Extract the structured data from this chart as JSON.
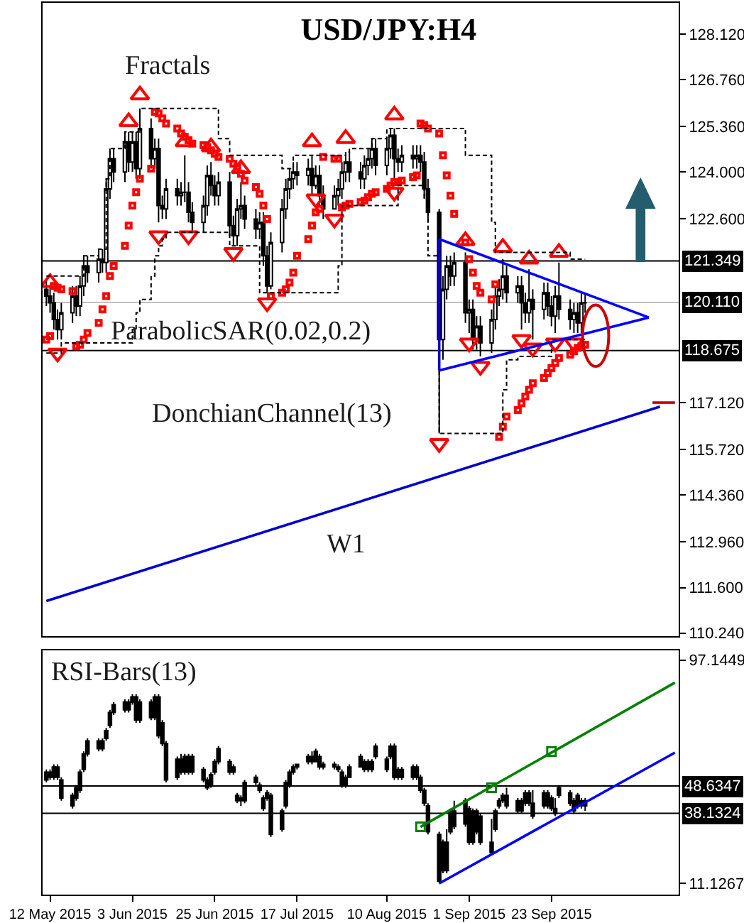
{
  "chart_data": [
    {
      "type": "candlestick",
      "title": "USD/JPY:H4",
      "color": "#000000",
      "tick_labels": "y",
      "xlim": [
        "2015-05-10",
        "2015-10-27"
      ],
      "ylim": [
        110.15,
        129.05
      ],
      "yticks": [
        {
          "value": 128.12,
          "label": "128.120"
        },
        {
          "value": 126.76,
          "label": "126.760"
        },
        {
          "value": 125.36,
          "label": "125.360"
        },
        {
          "value": 124.0,
          "label": "124.000"
        },
        {
          "value": 122.6,
          "label": "122.600"
        },
        {
          "value": 117.12,
          "label": "117.120"
        },
        {
          "value": 115.72,
          "label": "115.720"
        },
        {
          "value": 114.36,
          "label": "114.360"
        },
        {
          "value": 112.96,
          "label": "112.960"
        },
        {
          "value": 111.6,
          "label": "111.600"
        },
        {
          "value": 110.24,
          "label": "110.240"
        }
      ],
      "annotations": [
        "Fractals",
        "ParabolicSAR(0.02,0.2)",
        "DonchianChannel(13)",
        "W1"
      ],
      "ref_lines": [
        {
          "axis": "y",
          "value": 121.349,
          "label": "121.349",
          "color": "#000000"
        },
        {
          "axis": "y",
          "value": 120.11,
          "label": "120.110",
          "color": "#c0c0c0"
        },
        {
          "axis": "y",
          "value": 118.675,
          "label": "118.675",
          "color": "#000000"
        }
      ],
      "x": [
        "2015-05-11",
        "2015-05-12",
        "2015-05-13",
        "2015-05-14",
        "2015-05-15",
        "2015-05-18",
        "2015-05-19",
        "2015-05-20",
        "2015-05-21",
        "2015-05-22",
        "2015-05-25",
        "2015-05-26",
        "2015-05-27",
        "2015-05-28",
        "2015-05-29",
        "2015-06-01",
        "2015-06-02",
        "2015-06-03",
        "2015-06-04",
        "2015-06-05",
        "2015-06-08",
        "2015-06-09",
        "2015-06-10",
        "2015-06-11",
        "2015-06-12",
        "2015-06-15",
        "2015-06-16",
        "2015-06-17",
        "2015-06-18",
        "2015-06-19",
        "2015-06-22",
        "2015-06-23",
        "2015-06-24",
        "2015-06-25",
        "2015-06-26",
        "2015-06-29",
        "2015-06-30",
        "2015-07-01",
        "2015-07-02",
        "2015-07-03",
        "2015-07-06",
        "2015-07-07",
        "2015-07-08",
        "2015-07-09",
        "2015-07-10",
        "2015-07-13",
        "2015-07-14",
        "2015-07-15",
        "2015-07-16",
        "2015-07-17",
        "2015-07-20",
        "2015-07-21",
        "2015-07-22",
        "2015-07-23",
        "2015-07-24",
        "2015-07-27",
        "2015-07-28",
        "2015-07-29",
        "2015-07-30",
        "2015-07-31",
        "2015-08-03",
        "2015-08-04",
        "2015-08-05",
        "2015-08-06",
        "2015-08-07",
        "2015-08-10",
        "2015-08-11",
        "2015-08-12",
        "2015-08-13",
        "2015-08-14",
        "2015-08-17",
        "2015-08-18",
        "2015-08-19",
        "2015-08-20",
        "2015-08-21",
        "2015-08-24",
        "2015-08-25",
        "2015-08-26",
        "2015-08-27",
        "2015-08-28",
        "2015-08-31",
        "2015-09-01",
        "2015-09-02",
        "2015-09-03",
        "2015-09-04",
        "2015-09-07",
        "2015-09-08",
        "2015-09-09",
        "2015-09-10",
        "2015-09-11",
        "2015-09-14",
        "2015-09-15",
        "2015-09-16",
        "2015-09-17",
        "2015-09-18",
        "2015-09-21",
        "2015-09-22",
        "2015-09-23",
        "2015-09-24",
        "2015-09-25",
        "2015-09-28",
        "2015-09-29",
        "2015-09-30",
        "2015-10-01",
        "2015-10-02"
      ],
      "ohlc": [
        [
          120.5,
          120.8,
          120.0,
          120.3
        ],
        [
          120.3,
          120.6,
          119.8,
          120.1
        ],
        [
          120.1,
          120.4,
          119.3,
          119.6
        ],
        [
          119.6,
          119.9,
          119.0,
          119.3
        ],
        [
          119.3,
          120.1,
          119.0,
          119.8
        ],
        [
          119.8,
          120.6,
          119.5,
          120.3
        ],
        [
          120.3,
          120.6,
          119.7,
          120.0
        ],
        [
          120.0,
          120.9,
          119.7,
          120.6
        ],
        [
          120.6,
          121.5,
          120.3,
          121.2
        ],
        [
          121.2,
          121.5,
          120.7,
          121.0
        ],
        [
          121.0,
          121.7,
          120.7,
          121.4
        ],
        [
          121.4,
          121.7,
          121.0,
          121.3
        ],
        [
          121.3,
          123.8,
          121.0,
          123.5
        ],
        [
          123.5,
          124.7,
          123.2,
          124.4
        ],
        [
          124.4,
          124.7,
          123.7,
          124.0
        ],
        [
          124.0,
          125.2,
          123.7,
          124.9
        ],
        [
          124.9,
          125.2,
          124.0,
          124.3
        ],
        [
          124.3,
          125.2,
          124.0,
          124.9
        ],
        [
          124.9,
          125.2,
          123.8,
          124.1
        ],
        [
          124.1,
          125.9,
          123.8,
          125.3
        ],
        [
          125.3,
          125.6,
          124.1,
          124.4
        ],
        [
          124.4,
          125.0,
          124.1,
          124.7
        ],
        [
          124.7,
          125.0,
          122.5,
          123.0
        ],
        [
          123.0,
          123.3,
          122.6,
          122.9
        ],
        [
          122.9,
          123.8,
          122.6,
          123.5
        ],
        [
          123.5,
          123.8,
          123.0,
          123.3
        ],
        [
          123.3,
          123.7,
          123.0,
          123.4
        ],
        [
          123.4,
          124.5,
          123.1,
          123.4
        ],
        [
          123.4,
          123.7,
          122.5,
          122.8
        ],
        [
          122.8,
          123.1,
          122.2,
          122.5
        ],
        [
          122.5,
          123.3,
          122.2,
          123.0
        ],
        [
          123.0,
          124.2,
          122.7,
          123.9
        ],
        [
          123.9,
          124.3,
          123.3,
          123.6
        ],
        [
          123.6,
          123.9,
          123.0,
          123.3
        ],
        [
          123.3,
          124.0,
          123.0,
          123.7
        ],
        [
          123.7,
          124.0,
          122.1,
          122.4
        ],
        [
          122.4,
          122.7,
          121.8,
          122.1
        ],
        [
          122.1,
          123.2,
          121.8,
          122.9
        ],
        [
          122.9,
          123.7,
          122.6,
          123.0
        ],
        [
          123.0,
          123.3,
          122.3,
          122.6
        ],
        [
          122.6,
          122.9,
          122.0,
          122.3
        ],
        [
          122.3,
          122.8,
          122.0,
          122.5
        ],
        [
          122.5,
          122.8,
          121.2,
          121.5
        ],
        [
          121.5,
          121.8,
          120.4,
          120.6
        ],
        [
          120.6,
          122.2,
          120.5,
          121.9
        ],
        [
          121.9,
          123.2,
          121.6,
          122.9
        ],
        [
          122.9,
          123.8,
          122.6,
          123.5
        ],
        [
          123.5,
          124.1,
          123.2,
          123.8
        ],
        [
          123.8,
          124.3,
          123.5,
          124.0
        ],
        [
          124.0,
          124.3,
          123.6,
          123.9
        ],
        [
          123.9,
          124.4,
          123.6,
          124.1
        ],
        [
          124.1,
          124.5,
          123.3,
          123.6
        ],
        [
          123.6,
          124.2,
          123.5,
          123.9
        ],
        [
          123.9,
          124.2,
          123.0,
          123.3
        ],
        [
          123.3,
          123.6,
          122.6,
          122.9
        ],
        [
          122.9,
          123.6,
          122.9,
          123.3
        ],
        [
          123.3,
          123.8,
          123.0,
          123.5
        ],
        [
          123.5,
          124.3,
          123.2,
          124.0
        ],
        [
          124.0,
          124.6,
          123.7,
          124.3
        ],
        [
          124.3,
          124.6,
          123.7,
          124.0
        ],
        [
          124.0,
          124.3,
          123.5,
          123.8
        ],
        [
          123.8,
          124.5,
          123.5,
          124.2
        ],
        [
          124.2,
          124.7,
          123.9,
          124.4
        ],
        [
          124.4,
          125.0,
          124.1,
          124.7
        ],
        [
          124.7,
          125.0,
          123.9,
          124.2
        ],
        [
          124.2,
          125.0,
          123.9,
          124.7
        ],
        [
          124.7,
          125.3,
          124.4,
          125.1
        ],
        [
          125.1,
          125.3,
          123.8,
          124.4
        ],
        [
          124.4,
          124.7,
          124.0,
          124.3
        ],
        [
          124.3,
          124.8,
          124.0,
          124.5
        ],
        [
          124.5,
          124.8,
          124.1,
          124.4
        ],
        [
          124.4,
          124.8,
          124.1,
          124.5
        ],
        [
          124.5,
          124.8,
          124.0,
          124.3
        ],
        [
          124.3,
          124.6,
          123.2,
          123.5
        ],
        [
          123.5,
          123.8,
          122.5,
          122.8
        ],
        [
          122.8,
          122.9,
          116.2,
          119.0
        ],
        [
          119.0,
          120.9,
          118.4,
          120.5
        ],
        [
          120.5,
          121.5,
          120.2,
          121.2
        ],
        [
          121.2,
          121.5,
          120.6,
          120.9
        ],
        [
          120.9,
          121.6,
          120.6,
          121.3
        ],
        [
          121.3,
          121.6,
          119.5,
          119.8
        ],
        [
          119.8,
          120.2,
          119.2,
          119.9
        ],
        [
          119.9,
          120.2,
          118.7,
          119.0
        ],
        [
          119.0,
          119.7,
          118.7,
          119.4
        ],
        [
          119.4,
          119.7,
          118.5,
          118.9
        ],
        [
          118.9,
          119.9,
          118.6,
          119.6
        ],
        [
          119.6,
          120.6,
          119.3,
          120.3
        ],
        [
          120.3,
          120.8,
          120.0,
          120.5
        ],
        [
          120.5,
          121.4,
          120.2,
          120.9
        ],
        [
          120.9,
          121.2,
          120.1,
          120.4
        ],
        [
          120.4,
          120.9,
          120.1,
          120.6
        ],
        [
          120.6,
          120.9,
          119.3,
          120.1
        ],
        [
          120.1,
          120.4,
          119.5,
          119.8
        ],
        [
          119.8,
          121.1,
          119.5,
          120.2
        ],
        [
          120.2,
          120.5,
          119.0,
          119.9
        ],
        [
          119.9,
          120.7,
          119.6,
          120.4
        ],
        [
          120.4,
          120.7,
          119.7,
          120.0
        ],
        [
          120.0,
          120.3,
          119.4,
          119.7
        ],
        [
          119.7,
          120.6,
          119.2,
          120.3
        ],
        [
          120.3,
          121.3,
          119.6,
          119.9
        ],
        [
          119.9,
          120.2,
          119.3,
          119.6
        ],
        [
          119.6,
          120.1,
          119.2,
          119.8
        ],
        [
          119.8,
          120.1,
          119.2,
          119.5
        ],
        [
          119.5,
          120.4,
          119.2,
          120.1
        ],
        [
          120.1,
          120.4,
          119.8,
          120.1
        ]
      ],
      "series": [
        {
          "type": "scatter",
          "marker": "square",
          "color": "#ff0000",
          "values": [
            119.0,
            119.1,
            120.6,
            120.55,
            120.5,
            120.45,
            118.8,
            118.85,
            119.0,
            119.2,
            119.5,
            119.9,
            120.3,
            120.9,
            121.2,
            121.8,
            122.4,
            123.0,
            123.4,
            123.8,
            124.1,
            125.8,
            125.75,
            125.6,
            125.45,
            125.3,
            125.15,
            125.05,
            124.95,
            124.85,
            124.8,
            124.75,
            124.65,
            124.55,
            124.45,
            124.4,
            124.25,
            124.15,
            123.95,
            123.75,
            123.55,
            123.35,
            123.0,
            122.6,
            120.3,
            120.4,
            120.5,
            120.7,
            121.0,
            121.5,
            122.0,
            122.4,
            122.8,
            122.9,
            124.45,
            124.4,
            124.4,
            122.95,
            123.0,
            123.05,
            123.1,
            123.15,
            123.25,
            123.35,
            123.4,
            123.5,
            123.6,
            123.7,
            123.7,
            123.75,
            123.85,
            123.9,
            125.45,
            125.4,
            125.3,
            125.15,
            124.5,
            123.9,
            123.3,
            122.75,
            121.9,
            121.4,
            121.0,
            120.6,
            120.4,
            120.2,
            120.65,
            116.1,
            116.4,
            116.7,
            116.9,
            117.1,
            117.3,
            117.5,
            117.7,
            117.85,
            118.0,
            118.15,
            118.3,
            118.45,
            118.55,
            118.65,
            118.75,
            118.8,
            118.85
          ]
        },
        {
          "type": "scatter",
          "marker": "triangle",
          "color": "#ff0000",
          "values": [
            null,
            120.7,
            null,
            null,
            null,
            null,
            null,
            null,
            null,
            null,
            null,
            null,
            null,
            null,
            null,
            null,
            125.5,
            null,
            null,
            126.3,
            null,
            null,
            null,
            null,
            null,
            null,
            null,
            124.9,
            null,
            null,
            null,
            null,
            124.75,
            null,
            null,
            null,
            null,
            null,
            124.1,
            null,
            null,
            null,
            null,
            null,
            null,
            null,
            null,
            null,
            null,
            null,
            null,
            124.9,
            null,
            null,
            null,
            null,
            null,
            null,
            125.0,
            null,
            null,
            null,
            null,
            null,
            null,
            null,
            null,
            125.7,
            null,
            null,
            null,
            null,
            null,
            null,
            null,
            null,
            null,
            null,
            null,
            null,
            121.95,
            null,
            null,
            null,
            null,
            null,
            null,
            null,
            121.75,
            null,
            null,
            null,
            null,
            121.4,
            null,
            null,
            null,
            null,
            null,
            121.6,
            null,
            null,
            null,
            null,
            null
          ]
        },
        {
          "type": "scatter",
          "marker": "triangle",
          "color": "#ff0000",
          "values": [
            null,
            null,
            null,
            118.6,
            null,
            null,
            null,
            null,
            null,
            null,
            null,
            null,
            null,
            null,
            null,
            null,
            null,
            null,
            null,
            null,
            null,
            null,
            122.1,
            null,
            null,
            null,
            null,
            null,
            122.1,
            null,
            null,
            null,
            null,
            null,
            null,
            null,
            121.6,
            null,
            null,
            null,
            null,
            null,
            null,
            120.1,
            null,
            null,
            null,
            null,
            null,
            null,
            null,
            null,
            123.2,
            null,
            null,
            122.6,
            null,
            null,
            null,
            null,
            null,
            null,
            null,
            null,
            null,
            null,
            null,
            123.4,
            null,
            null,
            null,
            null,
            null,
            null,
            null,
            115.9,
            null,
            null,
            null,
            null,
            null,
            118.9,
            null,
            null,
            118.2,
            null,
            null,
            null,
            null,
            null,
            null,
            119.0,
            null,
            null,
            118.75,
            null,
            null,
            null,
            118.9,
            null,
            null,
            118.9,
            null,
            null,
            null
          ]
        },
        {
          "type": "step",
          "line_style": "dashed",
          "color": "#000000",
          "values": [
            120.9,
            120.9,
            120.9,
            120.9,
            120.9,
            120.9,
            120.9,
            120.9,
            121.5,
            121.5,
            121.7,
            121.7,
            123.8,
            124.7,
            124.7,
            125.2,
            125.2,
            125.2,
            125.2,
            125.9,
            125.9,
            125.9,
            125.9,
            125.9,
            125.9,
            125.9,
            125.9,
            125.9,
            125.9,
            125.9,
            125.9,
            125.9,
            125.9,
            125.9,
            125.0,
            124.5,
            124.5,
            124.5,
            124.5,
            124.5,
            124.5,
            124.5,
            124.5,
            124.5,
            124.5,
            124.1,
            124.1,
            124.1,
            124.5,
            124.5,
            124.5,
            124.5,
            124.5,
            124.5,
            124.5,
            124.5,
            124.5,
            124.5,
            124.6,
            124.7,
            124.7,
            124.7,
            124.7,
            125.0,
            125.0,
            125.3,
            125.3,
            125.3,
            125.3,
            125.3,
            125.3,
            125.3,
            125.3,
            125.3,
            125.3,
            125.3,
            125.3,
            125.3,
            125.3,
            125.3,
            124.5,
            124.5,
            124.5,
            124.5,
            124.5,
            122.5,
            121.6,
            121.6,
            121.6,
            121.6,
            121.6,
            121.6,
            121.6,
            121.6,
            121.6,
            121.6,
            121.6,
            121.6,
            121.6,
            121.6,
            121.4,
            121.4,
            121.4,
            121.4,
            121.4
          ]
        },
        {
          "type": "step",
          "line_style": "dashed",
          "color": "#000000",
          "values": [
            118.6,
            118.6,
            118.6,
            118.6,
            118.9,
            118.9,
            118.9,
            118.9,
            118.9,
            118.9,
            118.9,
            118.9,
            118.9,
            118.9,
            118.9,
            118.9,
            118.9,
            119.3,
            119.8,
            120.2,
            120.9,
            121.5,
            121.8,
            122.0,
            122.2,
            122.2,
            122.2,
            122.2,
            122.2,
            122.2,
            122.2,
            122.2,
            122.2,
            122.2,
            122.2,
            121.8,
            121.8,
            121.8,
            121.8,
            121.8,
            121.8,
            120.4,
            120.4,
            120.4,
            120.4,
            120.4,
            120.4,
            120.4,
            120.4,
            120.4,
            120.4,
            120.4,
            120.4,
            120.4,
            120.4,
            120.4,
            121.2,
            123.0,
            123.0,
            123.0,
            123.0,
            123.0,
            123.0,
            123.0,
            123.0,
            123.0,
            123.0,
            123.0,
            123.6,
            123.6,
            123.6,
            123.6,
            123.6,
            123.2,
            121.5,
            116.2,
            116.2,
            116.2,
            116.2,
            116.2,
            116.2,
            116.2,
            116.2,
            116.2,
            116.2,
            116.2,
            116.2,
            116.2,
            117.5,
            118.4,
            118.5,
            118.5,
            118.5,
            118.5,
            118.5,
            118.5,
            118.5,
            119.0,
            119.0,
            119.0,
            119.0,
            119.0,
            119.0,
            119.0,
            119.0
          ]
        },
        {
          "type": "line",
          "color": "#0000ff",
          "x": [
            "2015-08-24",
            "2015-10-19"
          ],
          "values": [
            122.0,
            119.66
          ]
        },
        {
          "type": "line",
          "color": "#0000ff",
          "x": [
            "2015-08-24",
            "2015-10-19"
          ],
          "values": [
            118.08,
            119.66
          ]
        },
        {
          "type": "line",
          "color": "#0000cc",
          "x": [
            "2015-08-24",
            "2015-08-24"
          ],
          "values": [
            122.0,
            118.08
          ]
        },
        {
          "type": "line",
          "color": "#0000cc",
          "x": [
            "2015-05-11",
            "2015-10-22"
          ],
          "values": [
            111.2,
            117.0
          ]
        },
        {
          "type": "line",
          "color": "#c00000",
          "x": [
            "2015-10-20",
            "2015-10-26"
          ],
          "values": [
            117.12,
            117.12
          ]
        }
      ]
    },
    {
      "type": "candlestick",
      "color": "#000000",
      "xlim": [
        "2015-05-10",
        "2015-10-27"
      ],
      "ylim": [
        6.8,
        100.9
      ],
      "yticks": [
        97.1449,
        11.1267
      ],
      "xticks": [
        {
          "value": "2015-05-12",
          "label": "12 May 2015"
        },
        {
          "value": "2015-06-03",
          "label": "3 Jun 2015"
        },
        {
          "value": "2015-06-25",
          "label": "25 Jun 2015"
        },
        {
          "value": "2015-07-17",
          "label": "17 Jul 2015"
        },
        {
          "value": "2015-08-10",
          "label": "10 Aug 2015"
        },
        {
          "value": "2015-09-01",
          "label": "1 Sep 2015"
        },
        {
          "value": "2015-09-23",
          "label": "23 Sep 2015"
        }
      ],
      "annotations": [
        "RSI-Bars(13)"
      ],
      "ref_lines": [
        {
          "axis": "y",
          "value": 48.6347,
          "label": "48.6347",
          "color": "#000000"
        },
        {
          "axis": "y",
          "value": 38.1324,
          "label": "38.1324",
          "color": "#000000"
        }
      ],
      "x": [
        "2015-05-11",
        "2015-05-12",
        "2015-05-13",
        "2015-05-14",
        "2015-05-15",
        "2015-05-18",
        "2015-05-19",
        "2015-05-20",
        "2015-05-21",
        "2015-05-22",
        "2015-05-25",
        "2015-05-26",
        "2015-05-27",
        "2015-05-28",
        "2015-05-29",
        "2015-06-01",
        "2015-06-02",
        "2015-06-03",
        "2015-06-04",
        "2015-06-05",
        "2015-06-08",
        "2015-06-09",
        "2015-06-10",
        "2015-06-11",
        "2015-06-12",
        "2015-06-15",
        "2015-06-16",
        "2015-06-17",
        "2015-06-18",
        "2015-06-19",
        "2015-06-22",
        "2015-06-23",
        "2015-06-24",
        "2015-06-25",
        "2015-06-26",
        "2015-06-29",
        "2015-06-30",
        "2015-07-01",
        "2015-07-02",
        "2015-07-03",
        "2015-07-06",
        "2015-07-07",
        "2015-07-08",
        "2015-07-09",
        "2015-07-10",
        "2015-07-13",
        "2015-07-14",
        "2015-07-15",
        "2015-07-16",
        "2015-07-17",
        "2015-07-20",
        "2015-07-21",
        "2015-07-22",
        "2015-07-23",
        "2015-07-24",
        "2015-07-27",
        "2015-07-28",
        "2015-07-29",
        "2015-07-30",
        "2015-07-31",
        "2015-08-03",
        "2015-08-04",
        "2015-08-05",
        "2015-08-06",
        "2015-08-07",
        "2015-08-10",
        "2015-08-11",
        "2015-08-12",
        "2015-08-13",
        "2015-08-14",
        "2015-08-17",
        "2015-08-18",
        "2015-08-19",
        "2015-08-20",
        "2015-08-21",
        "2015-08-24",
        "2015-08-25",
        "2015-08-26",
        "2015-08-27",
        "2015-08-28",
        "2015-08-31",
        "2015-09-01",
        "2015-09-02",
        "2015-09-03",
        "2015-09-04",
        "2015-09-07",
        "2015-09-08",
        "2015-09-09",
        "2015-09-10",
        "2015-09-11",
        "2015-09-14",
        "2015-09-15",
        "2015-09-16",
        "2015-09-17",
        "2015-09-18",
        "2015-09-21",
        "2015-09-22",
        "2015-09-23",
        "2015-09-24",
        "2015-09-25",
        "2015-09-28",
        "2015-09-29",
        "2015-09-30",
        "2015-10-01",
        "2015-10-02"
      ],
      "ohlc": [
        [
          54,
          55,
          50,
          51
        ],
        [
          54,
          55,
          51,
          52
        ],
        [
          56,
          57,
          51,
          52
        ],
        [
          56,
          57,
          51,
          52
        ],
        [
          51,
          52,
          43,
          44
        ],
        [
          45,
          46,
          40,
          41
        ],
        [
          48,
          49,
          43,
          44
        ],
        [
          54,
          55,
          46,
          47
        ],
        [
          61,
          62,
          54,
          55
        ],
        [
          66,
          67,
          60,
          61
        ],
        [
          66,
          67,
          62,
          63
        ],
        [
          66,
          67,
          62,
          63
        ],
        [
          70,
          71,
          66,
          67
        ],
        [
          77,
          78,
          71,
          72
        ],
        [
          80,
          81,
          76,
          77
        ],
        [
          81,
          82,
          77,
          78
        ],
        [
          81,
          82,
          77,
          78
        ],
        [
          83,
          84,
          80,
          81
        ],
        [
          83,
          84,
          73,
          74
        ],
        [
          81,
          82,
          73,
          74
        ],
        [
          81,
          82,
          74,
          75
        ],
        [
          83,
          84,
          74,
          75
        ],
        [
          83,
          84,
          67,
          68
        ],
        [
          73,
          74,
          64,
          65
        ],
        [
          65,
          66,
          50,
          51
        ],
        [
          59,
          60,
          51,
          52
        ],
        [
          59,
          61,
          53,
          54
        ],
        [
          60,
          61,
          53,
          54
        ],
        [
          60,
          61,
          53,
          54
        ],
        [
          60,
          61,
          53,
          54
        ],
        [
          55,
          56,
          50,
          51
        ],
        [
          51,
          52,
          47,
          48
        ],
        [
          53,
          54,
          48,
          49
        ],
        [
          58,
          59,
          53,
          54
        ],
        [
          63,
          64,
          57,
          58
        ],
        [
          58,
          59,
          53,
          54
        ],
        [
          56,
          57,
          53,
          54
        ],
        [
          45,
          46,
          42,
          43
        ],
        [
          44,
          45,
          41,
          43
        ],
        [
          50,
          51,
          42,
          43
        ],
        [
          52,
          53,
          49,
          50
        ],
        [
          49,
          50,
          46,
          47
        ],
        [
          44,
          45,
          39,
          40
        ],
        [
          46,
          47,
          43,
          44
        ],
        [
          45,
          46,
          29,
          30
        ],
        [
          39,
          40,
          31,
          32
        ],
        [
          50,
          51,
          40,
          41
        ],
        [
          54,
          55,
          48,
          49
        ],
        [
          56,
          57,
          53,
          54
        ],
        [
          57,
          57,
          55,
          56
        ],
        [
          60,
          61,
          57,
          58
        ],
        [
          60,
          62,
          57,
          58
        ],
        [
          62,
          63,
          58,
          58
        ],
        [
          60,
          61,
          55,
          56
        ],
        [
          57,
          58,
          55,
          56
        ],
        [
          57,
          58,
          55,
          56
        ],
        [
          56,
          57,
          54,
          55
        ],
        [
          54,
          55,
          48,
          49
        ],
        [
          52,
          53,
          48,
          49
        ],
        [
          56,
          57,
          52,
          52
        ],
        [
          60,
          61,
          56,
          56
        ],
        [
          58,
          59,
          54,
          55
        ],
        [
          58,
          59,
          54,
          55
        ],
        [
          58,
          59,
          54,
          55
        ],
        [
          64,
          65,
          59,
          60
        ],
        [
          59,
          60,
          54,
          55
        ],
        [
          64,
          65,
          59,
          60
        ],
        [
          64,
          65,
          51,
          52
        ],
        [
          55,
          56,
          51,
          52
        ],
        [
          55,
          56,
          51,
          52
        ],
        [
          56,
          57,
          51,
          52
        ],
        [
          56,
          57,
          51,
          52
        ],
        [
          52,
          53,
          46,
          47
        ],
        [
          47,
          48,
          41,
          42
        ],
        [
          41,
          42,
          30,
          31
        ],
        [
          30,
          31,
          11.13,
          12
        ],
        [
          27,
          28,
          15,
          16
        ],
        [
          27,
          32,
          15,
          16
        ],
        [
          39,
          40,
          30,
          31
        ],
        [
          39,
          43,
          32,
          33
        ],
        [
          43,
          44,
          33,
          34
        ],
        [
          40,
          41,
          26,
          27
        ],
        [
          39,
          40,
          26,
          27
        ],
        [
          39,
          40,
          30,
          31
        ],
        [
          37,
          38,
          26,
          27
        ],
        [
          27,
          36,
          22,
          23
        ],
        [
          39,
          40,
          31,
          32
        ],
        [
          43,
          44,
          40,
          41
        ],
        [
          45,
          46,
          42,
          43
        ],
        [
          45,
          48,
          40,
          41
        ],
        [
          43,
          44,
          38,
          39
        ],
        [
          43,
          44,
          38,
          39
        ],
        [
          46,
          47,
          41,
          42
        ],
        [
          46,
          47,
          41,
          42
        ],
        [
          42,
          47,
          36,
          37
        ],
        [
          46,
          47,
          40,
          41
        ],
        [
          46,
          47,
          40,
          41
        ],
        [
          44,
          45,
          39,
          40
        ],
        [
          40,
          44,
          37,
          38
        ],
        [
          48,
          49,
          44,
          45
        ],
        [
          46,
          47,
          41,
          42
        ],
        [
          43,
          44,
          38,
          39
        ],
        [
          45,
          46,
          40,
          41
        ],
        [
          43,
          44,
          40,
          41
        ],
        [
          43,
          44,
          39,
          41
        ]
      ],
      "series": [
        {
          "type": "line",
          "color": "#008000",
          "x": [
            "2015-08-19",
            "2015-10-26"
          ],
          "values": [
            32.9,
            88.5
          ]
        },
        {
          "type": "scatter",
          "marker": "square",
          "color": "#008000",
          "x": [
            "2015-08-19",
            "2015-09-07",
            "2015-09-23"
          ],
          "values": [
            32.9,
            48.0,
            61.9
          ]
        },
        {
          "type": "line",
          "color": "#0000ff",
          "x": [
            "2015-08-24",
            "2015-10-26"
          ],
          "values": [
            11.1,
            61.5
          ]
        }
      ]
    }
  ]
}
